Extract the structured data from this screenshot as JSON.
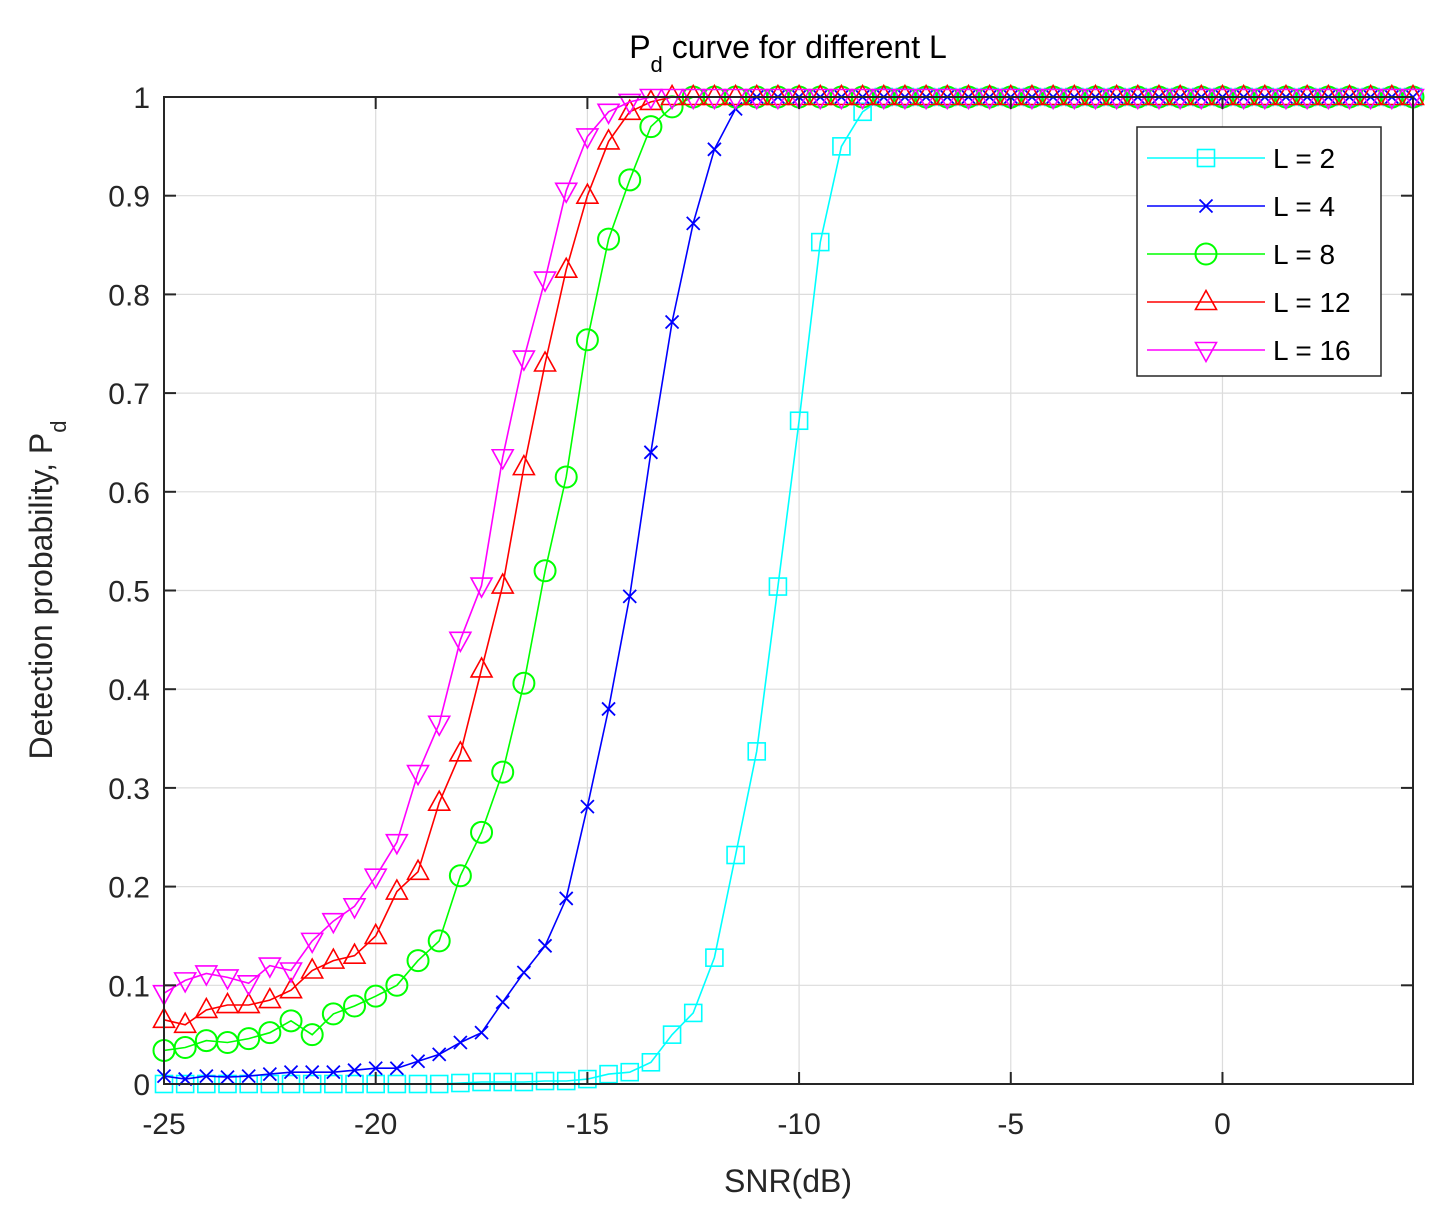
{
  "chart_data": {
    "type": "line",
    "title": "P",
    "title_subscript": "d",
    "title_suffix": " curve for different L",
    "xlabel": "SNR(dB)",
    "ylabel": "Detection probability, P",
    "ylabel_subscript": "d",
    "xlim": [
      -25,
      4.5
    ],
    "ylim": [
      0,
      1
    ],
    "xticks": [
      -25,
      -20,
      -15,
      -10,
      -5,
      0
    ],
    "xtick_labels": [
      "-25",
      "-20",
      "-15",
      "-10",
      "-5",
      "0"
    ],
    "yticks": [
      0,
      0.1,
      0.2,
      0.3,
      0.4,
      0.5,
      0.6,
      0.7,
      0.8,
      0.9,
      1
    ],
    "ytick_labels": [
      "0",
      "0.1",
      "0.2",
      "0.3",
      "0.4",
      "0.5",
      "0.6",
      "0.7",
      "0.8",
      "0.9",
      "1"
    ],
    "grid": true,
    "legend_position": "top-right",
    "x": [
      -25,
      -24.5,
      -24,
      -23.5,
      -23,
      -22.5,
      -22,
      -21.5,
      -21,
      -20.5,
      -20,
      -19.5,
      -19,
      -18.5,
      -18,
      -17.5,
      -17,
      -16.5,
      -16,
      -15.5,
      -15,
      -14.5,
      -14,
      -13.5,
      -13,
      -12.5,
      -12,
      -11.5,
      -11,
      -10.5,
      -10,
      -9.5,
      -9,
      -8.5,
      -8,
      -7.5,
      -7,
      -6.5,
      -6,
      -5.5,
      -5,
      -4.5,
      -4,
      -3.5,
      -3,
      -2.5,
      -2,
      -1.5,
      -1,
      -0.5,
      0,
      0.5,
      1,
      1.5,
      2,
      2.5,
      3,
      3.5,
      4,
      4.5
    ],
    "series": [
      {
        "name": "L = 2",
        "color": "#00FFFF",
        "marker": "square",
        "values": [
          0,
          0,
          0,
          0,
          0,
          0,
          0,
          0,
          0,
          0,
          0,
          0,
          0,
          0,
          0.001,
          0.002,
          0.002,
          0.002,
          0.003,
          0.003,
          0.005,
          0.01,
          0.012,
          0.022,
          0.05,
          0.072,
          0.128,
          0.232,
          0.337,
          0.504,
          0.672,
          0.853,
          0.95,
          0.985,
          1,
          1,
          1,
          1,
          1,
          1,
          1,
          1,
          1,
          1,
          1,
          1,
          1,
          1,
          1,
          1,
          1,
          1,
          1,
          1,
          1,
          1,
          1,
          1,
          1,
          1
        ]
      },
      {
        "name": "L = 4",
        "color": "#0000FF",
        "marker": "x",
        "values": [
          0.008,
          0.005,
          0.008,
          0.007,
          0.008,
          0.01,
          0.012,
          0.012,
          0.012,
          0.014,
          0.016,
          0.016,
          0.023,
          0.03,
          0.042,
          0.052,
          0.083,
          0.113,
          0.14,
          0.188,
          0.281,
          0.38,
          0.494,
          0.64,
          0.772,
          0.872,
          0.947,
          0.988,
          1,
          1,
          1,
          1,
          1,
          1,
          1,
          1,
          1,
          1,
          1,
          1,
          1,
          1,
          1,
          1,
          1,
          1,
          1,
          1,
          1,
          1,
          1,
          1,
          1,
          1,
          1,
          1,
          1,
          1,
          1,
          1
        ]
      },
      {
        "name": "L = 8",
        "color": "#00FF00",
        "marker": "circle",
        "values": [
          0.034,
          0.037,
          0.044,
          0.042,
          0.046,
          0.052,
          0.064,
          0.05,
          0.071,
          0.079,
          0.089,
          0.1,
          0.125,
          0.145,
          0.211,
          0.255,
          0.316,
          0.406,
          0.52,
          0.615,
          0.754,
          0.856,
          0.916,
          0.97,
          0.99,
          1,
          1,
          1,
          1,
          1,
          1,
          1,
          1,
          1,
          1,
          1,
          1,
          1,
          1,
          1,
          1,
          1,
          1,
          1,
          1,
          1,
          1,
          1,
          1,
          1,
          1,
          1,
          1,
          1,
          1,
          1,
          1,
          1,
          1,
          1
        ]
      },
      {
        "name": "L = 12",
        "color": "#FF0000",
        "marker": "triangle-up",
        "values": [
          0.065,
          0.06,
          0.075,
          0.08,
          0.08,
          0.085,
          0.095,
          0.115,
          0.125,
          0.13,
          0.15,
          0.195,
          0.215,
          0.285,
          0.335,
          0.42,
          0.505,
          0.625,
          0.73,
          0.825,
          0.9,
          0.955,
          0.985,
          0.995,
          1,
          1,
          1,
          1,
          1,
          1,
          1,
          1,
          1,
          1,
          1,
          1,
          1,
          1,
          1,
          1,
          1,
          1,
          1,
          1,
          1,
          1,
          1,
          1,
          1,
          1,
          1,
          1,
          1,
          1,
          1,
          1,
          1,
          1,
          1,
          1
        ]
      },
      {
        "name": "L = 16",
        "color": "#FF00FF",
        "marker": "triangle-down",
        "values": [
          0.092,
          0.105,
          0.112,
          0.108,
          0.102,
          0.12,
          0.115,
          0.145,
          0.165,
          0.18,
          0.21,
          0.245,
          0.315,
          0.365,
          0.45,
          0.505,
          0.635,
          0.735,
          0.815,
          0.905,
          0.96,
          0.985,
          0.995,
          1,
          1,
          1,
          1,
          1,
          1,
          1,
          1,
          1,
          1,
          1,
          1,
          1,
          1,
          1,
          1,
          1,
          1,
          1,
          1,
          1,
          1,
          1,
          1,
          1,
          1,
          1,
          1,
          1,
          1,
          1,
          1,
          1,
          1,
          1,
          1,
          1
        ]
      }
    ]
  }
}
